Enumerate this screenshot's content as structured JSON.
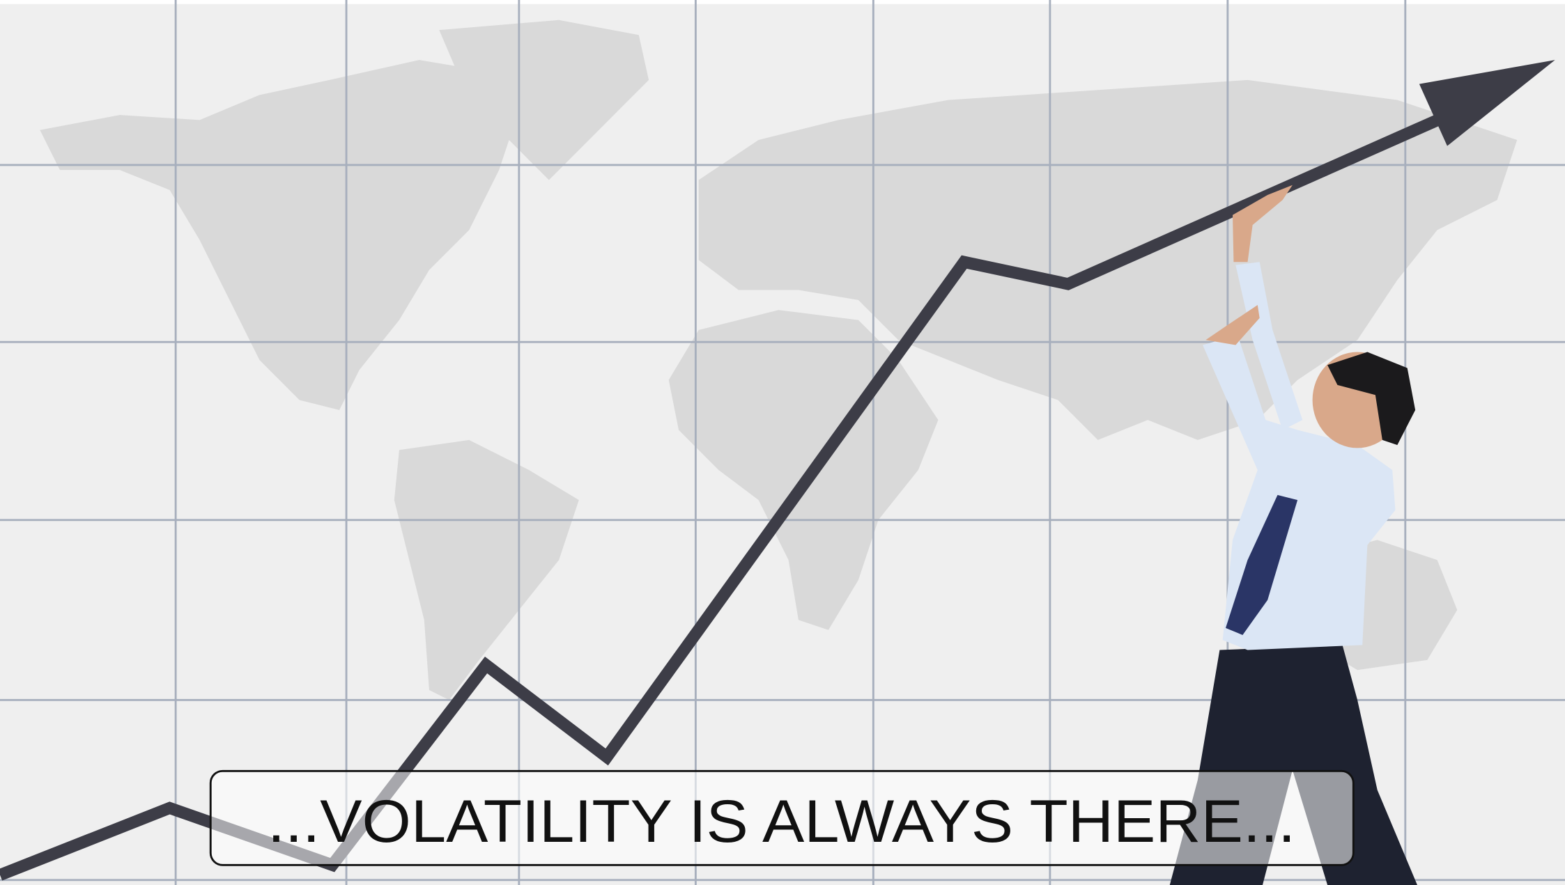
{
  "caption": "...VOLATILITY IS ALWAYS THERE..."
}
